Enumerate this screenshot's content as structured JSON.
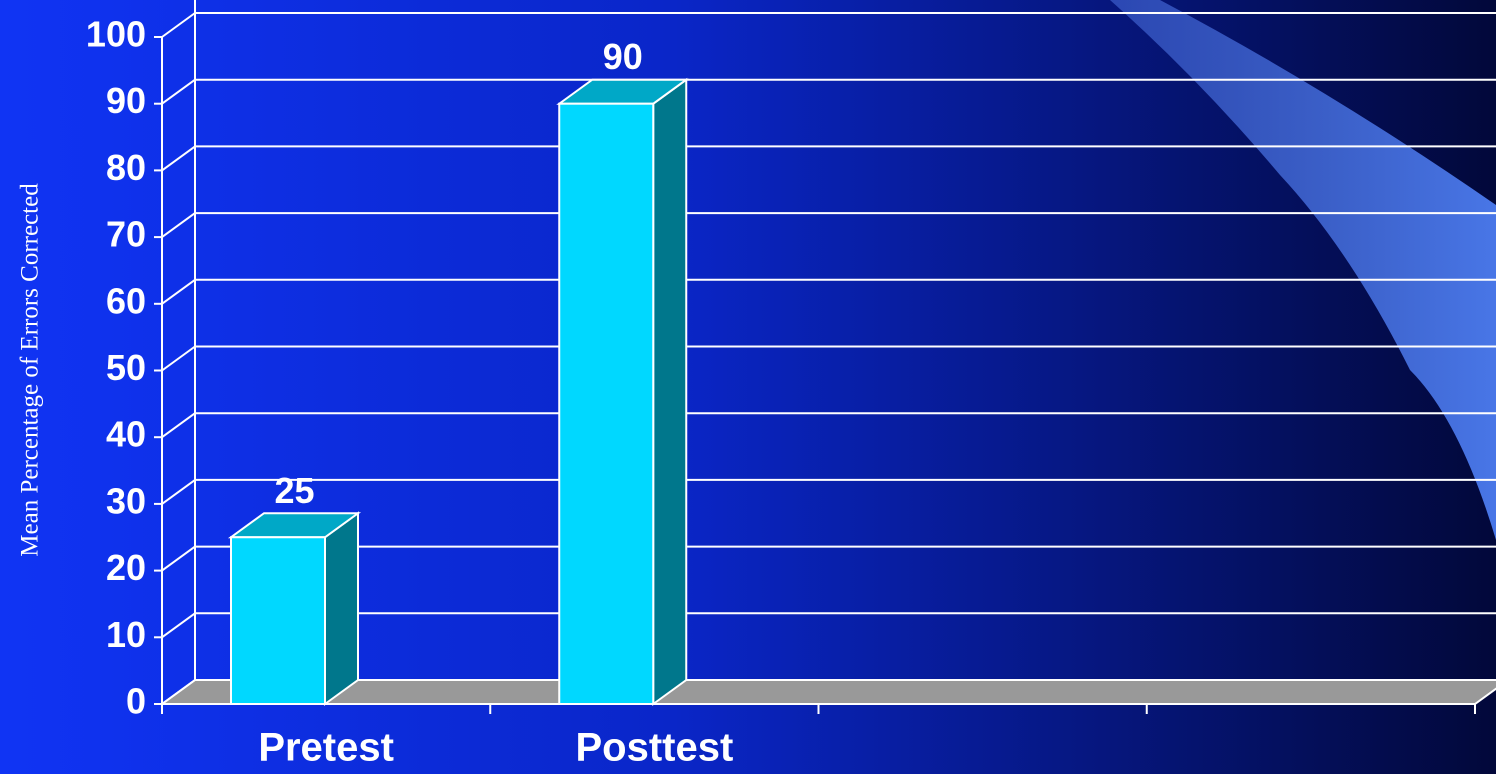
{
  "chart_data": {
    "type": "bar3d",
    "y_label": "Mean Percentage of Errors Corrected",
    "categories": [
      "Pretest",
      "Posttest",
      null,
      null
    ],
    "values": [
      25,
      90,
      null,
      null
    ],
    "color": "#00d8ff",
    "ylim": [
      0,
      100
    ],
    "yticks": [
      0,
      10,
      20,
      30,
      40,
      50,
      60,
      70,
      80,
      90,
      100
    ],
    "grid": true
  }
}
